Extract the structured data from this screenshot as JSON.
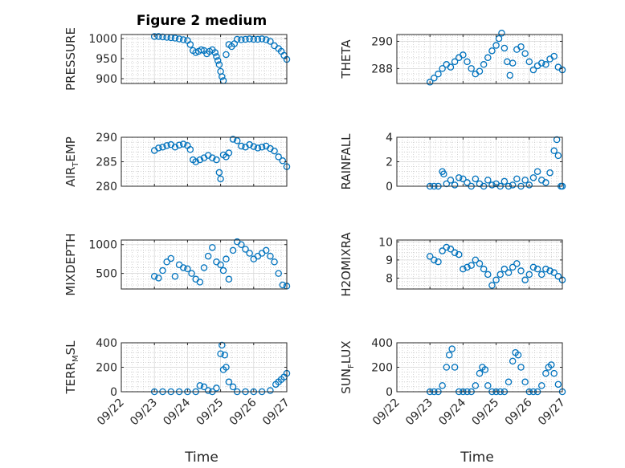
{
  "figure": {
    "title": "Figure 2 medium"
  },
  "chart_data": [
    {
      "type": "scatter",
      "ylabel": "PRESSURE",
      "ylim": [
        888,
        1010
      ],
      "yticks": [
        "900",
        "950",
        "1000"
      ],
      "ytick_values": [
        900,
        950,
        1000
      ],
      "color": "#0072BD",
      "x": [
        "09/23 00:00",
        "09/23 03:00",
        "09/23 06:00",
        "09/23 09:00",
        "09/23 12:00",
        "09/23 15:00",
        "09/23 18:00",
        "09/23 21:00",
        "09/24 00:00",
        "09/24 02:00",
        "09/24 04:00",
        "09/24 06:00",
        "09/24 08:00",
        "09/24 10:00",
        "09/24 12:00",
        "09/24 14:00",
        "09/24 16:00",
        "09/24 18:00",
        "09/24 20:00",
        "09/24 21:00",
        "09/24 22:00",
        "09/24 23:00",
        "09/25 00:00",
        "09/25 01:00",
        "09/25 02:00",
        "09/25 04:00",
        "09/25 06:00",
        "09/25 08:00",
        "09/25 10:00",
        "09/25 12:00",
        "09/25 15:00",
        "09/25 18:00",
        "09/25 21:00",
        "09/26 00:00",
        "09/26 03:00",
        "09/26 06:00",
        "09/26 09:00",
        "09/26 12:00",
        "09/26 15:00",
        "09/26 18:00",
        "09/26 20:00",
        "09/26 22:00",
        "09/27 00:00"
      ],
      "y": [
        1005,
        1005,
        1004,
        1003,
        1002,
        1001,
        999,
        997,
        995,
        985,
        970,
        965,
        968,
        972,
        970,
        962,
        968,
        972,
        965,
        955,
        945,
        935,
        918,
        905,
        895,
        960,
        985,
        980,
        987,
        998,
        997,
        998,
        999,
        998,
        998,
        999,
        997,
        993,
        982,
        975,
        968,
        958,
        948
      ]
    },
    {
      "type": "scatter",
      "ylabel": "THETA",
      "ylim": [
        286.9,
        290.5
      ],
      "yticks": [
        "288",
        "290"
      ],
      "ytick_values": [
        288,
        290
      ],
      "color": "#0072BD",
      "x": [
        "09/23 00:00",
        "09/23 03:00",
        "09/23 06:00",
        "09/23 09:00",
        "09/23 12:00",
        "09/23 15:00",
        "09/23 18:00",
        "09/23 21:00",
        "09/24 00:00",
        "09/24 03:00",
        "09/24 06:00",
        "09/24 09:00",
        "09/24 12:00",
        "09/24 15:00",
        "09/24 18:00",
        "09/24 21:00",
        "09/25 00:00",
        "09/25 02:00",
        "09/25 04:00",
        "09/25 06:00",
        "09/25 08:00",
        "09/25 10:00",
        "09/25 12:00",
        "09/25 15:00",
        "09/25 18:00",
        "09/25 21:00",
        "09/26 00:00",
        "09/26 03:00",
        "09/26 06:00",
        "09/26 09:00",
        "09/26 12:00",
        "09/26 15:00",
        "09/26 18:00",
        "09/26 21:00",
        "09/27 00:00"
      ],
      "y": [
        287.0,
        287.3,
        287.6,
        288.0,
        288.3,
        288.1,
        288.5,
        288.8,
        289.0,
        288.5,
        288.0,
        287.6,
        287.8,
        288.3,
        288.8,
        289.3,
        289.7,
        290.2,
        290.6,
        289.5,
        288.5,
        287.5,
        288.4,
        289.4,
        289.6,
        289.1,
        288.5,
        287.9,
        288.2,
        288.4,
        288.3,
        288.7,
        288.9,
        288.1,
        287.9
      ]
    },
    {
      "type": "scatter",
      "ylabel": "AIR_TEMP",
      "ylabel_main": "AIR",
      "ylabel_sub": "T",
      "ylabel_rest": "EMP",
      "ylim": [
        280,
        290
      ],
      "yticks": [
        "280",
        "285",
        "290"
      ],
      "ytick_values": [
        280,
        285,
        290
      ],
      "color": "#0072BD",
      "x": [
        "09/23 00:00",
        "09/23 03:00",
        "09/23 06:00",
        "09/23 09:00",
        "09/23 12:00",
        "09/23 15:00",
        "09/23 18:00",
        "09/23 21:00",
        "09/24 00:00",
        "09/24 02:00",
        "09/24 04:00",
        "09/24 06:00",
        "09/24 09:00",
        "09/24 12:00",
        "09/24 15:00",
        "09/24 18:00",
        "09/24 21:00",
        "09/24 23:00",
        "09/25 00:00",
        "09/25 02:00",
        "09/25 04:00",
        "09/25 06:00",
        "09/25 09:00",
        "09/25 12:00",
        "09/25 15:00",
        "09/25 18:00",
        "09/25 21:00",
        "09/26 00:00",
        "09/26 03:00",
        "09/26 06:00",
        "09/26 09:00",
        "09/26 12:00",
        "09/26 15:00",
        "09/26 18:00",
        "09/26 21:00",
        "09/27 00:00"
      ],
      "y": [
        287.3,
        287.8,
        288.0,
        288.3,
        288.5,
        288.0,
        288.4,
        288.6,
        288.3,
        287.5,
        285.4,
        285.0,
        285.4,
        285.8,
        286.3,
        285.8,
        285.4,
        282.8,
        281.5,
        286.4,
        286.0,
        286.8,
        289.6,
        289.3,
        288.2,
        288.0,
        288.5,
        288.1,
        287.8,
        288.0,
        288.2,
        287.7,
        287.2,
        286.0,
        285.2,
        284.0
      ]
    },
    {
      "type": "scatter",
      "ylabel": "RAINFALL",
      "ylim": [
        0,
        4
      ],
      "yticks": [
        "0",
        "2",
        "4"
      ],
      "ytick_values": [
        0,
        2,
        4
      ],
      "color": "#0072BD",
      "x": [
        "09/23 00:00",
        "09/23 03:00",
        "09/23 06:00",
        "09/23 09:00",
        "09/23 10:00",
        "09/23 12:00",
        "09/23 15:00",
        "09/23 18:00",
        "09/23 21:00",
        "09/24 00:00",
        "09/24 03:00",
        "09/24 06:00",
        "09/24 09:00",
        "09/24 12:00",
        "09/24 15:00",
        "09/24 18:00",
        "09/24 21:00",
        "09/25 00:00",
        "09/25 03:00",
        "09/25 06:00",
        "09/25 09:00",
        "09/25 12:00",
        "09/25 15:00",
        "09/25 18:00",
        "09/25 21:00",
        "09/26 00:00",
        "09/26 03:00",
        "09/26 06:00",
        "09/26 09:00",
        "09/26 12:00",
        "09/26 15:00",
        "09/26 18:00",
        "09/26 20:00",
        "09/26 21:00",
        "09/26 23:00",
        "09/27 00:00"
      ],
      "y": [
        0,
        0,
        0,
        1.2,
        1.0,
        0.2,
        0.5,
        0.1,
        0.7,
        0.6,
        0.3,
        0,
        0.6,
        0.2,
        0,
        0.5,
        0.1,
        0.2,
        0,
        0.4,
        0,
        0.1,
        0.6,
        0,
        0.5,
        0.1,
        0.7,
        1.2,
        0.5,
        0.3,
        1.1,
        2.9,
        3.8,
        2.5,
        0,
        0
      ]
    },
    {
      "type": "scatter",
      "ylabel": "MIXDEPTH",
      "ylim": [
        230,
        1080
      ],
      "yticks": [
        "500",
        "1000"
      ],
      "ytick_values": [
        500,
        1000
      ],
      "color": "#0072BD",
      "x": [
        "09/23 00:00",
        "09/23 03:00",
        "09/23 06:00",
        "09/23 09:00",
        "09/23 12:00",
        "09/23 15:00",
        "09/23 18:00",
        "09/23 21:00",
        "09/24 00:00",
        "09/24 03:00",
        "09/24 06:00",
        "09/24 09:00",
        "09/24 12:00",
        "09/24 15:00",
        "09/24 18:00",
        "09/24 21:00",
        "09/25 00:00",
        "09/25 02:00",
        "09/25 04:00",
        "09/25 06:00",
        "09/25 09:00",
        "09/25 12:00",
        "09/25 15:00",
        "09/25 18:00",
        "09/25 21:00",
        "09/26 00:00",
        "09/26 03:00",
        "09/26 06:00",
        "09/26 09:00",
        "09/26 12:00",
        "09/26 15:00",
        "09/26 18:00",
        "09/26 21:00",
        "09/27 00:00"
      ],
      "y": [
        450,
        420,
        550,
        700,
        760,
        450,
        650,
        600,
        580,
        500,
        400,
        350,
        600,
        800,
        950,
        700,
        650,
        550,
        750,
        400,
        900,
        1050,
        1000,
        920,
        850,
        750,
        800,
        850,
        900,
        800,
        700,
        500,
        300,
        280
      ]
    },
    {
      "type": "scatter",
      "ylabel": "H2OMIXRA",
      "ylim": [
        7.4,
        10.1
      ],
      "yticks": [
        "8",
        "9",
        "10"
      ],
      "ytick_values": [
        8,
        9,
        10
      ],
      "color": "#0072BD",
      "x": [
        "09/23 00:00",
        "09/23 03:00",
        "09/23 06:00",
        "09/23 09:00",
        "09/23 12:00",
        "09/23 15:00",
        "09/23 18:00",
        "09/23 21:00",
        "09/24 00:00",
        "09/24 03:00",
        "09/24 06:00",
        "09/24 09:00",
        "09/24 12:00",
        "09/24 15:00",
        "09/24 18:00",
        "09/24 21:00",
        "09/25 00:00",
        "09/25 03:00",
        "09/25 06:00",
        "09/25 09:00",
        "09/25 12:00",
        "09/25 15:00",
        "09/25 18:00",
        "09/25 21:00",
        "09/26 00:00",
        "09/26 03:00",
        "09/26 06:00",
        "09/26 09:00",
        "09/26 12:00",
        "09/26 15:00",
        "09/26 18:00",
        "09/26 21:00",
        "09/27 00:00"
      ],
      "y": [
        9.2,
        9.0,
        8.9,
        9.5,
        9.7,
        9.6,
        9.4,
        9.3,
        8.5,
        8.6,
        8.7,
        9.0,
        8.8,
        8.5,
        8.2,
        7.6,
        7.9,
        8.2,
        8.5,
        8.3,
        8.6,
        8.8,
        8.4,
        7.9,
        8.2,
        8.6,
        8.5,
        8.2,
        8.5,
        8.4,
        8.3,
        8.1,
        7.9
      ]
    },
    {
      "type": "scatter",
      "ylabel": "TERR_MSL",
      "ylabel_main": "TERR",
      "ylabel_sub": "M",
      "ylabel_rest": "SL",
      "ylim": [
        0,
        400
      ],
      "yticks": [
        "0",
        "200",
        "400"
      ],
      "ytick_values": [
        0,
        200,
        400
      ],
      "color": "#0072BD",
      "x": [
        "09/23 00:00",
        "09/23 06:00",
        "09/23 12:00",
        "09/23 18:00",
        "09/24 00:00",
        "09/24 06:00",
        "09/24 09:00",
        "09/24 12:00",
        "09/24 15:00",
        "09/24 18:00",
        "09/24 21:00",
        "09/25 00:00",
        "09/25 01:00",
        "09/25 02:00",
        "09/25 03:00",
        "09/25 04:00",
        "09/25 06:00",
        "09/25 09:00",
        "09/25 12:00",
        "09/25 18:00",
        "09/26 00:00",
        "09/26 06:00",
        "09/26 12:00",
        "09/26 16:00",
        "09/26 18:00",
        "09/26 20:00",
        "09/26 22:00",
        "09/27 00:00"
      ],
      "y": [
        0,
        0,
        0,
        0,
        0,
        0,
        50,
        40,
        10,
        0,
        30,
        310,
        380,
        180,
        300,
        200,
        80,
        40,
        0,
        0,
        0,
        0,
        10,
        60,
        80,
        100,
        120,
        150
      ]
    },
    {
      "type": "scatter",
      "ylabel": "SUN_FLUX",
      "ylabel_main": "SUN",
      "ylabel_sub": "F",
      "ylabel_rest": "LUX",
      "ylim": [
        0,
        400
      ],
      "yticks": [
        "0",
        "200",
        "400"
      ],
      "ytick_values": [
        0,
        200,
        400
      ],
      "color": "#0072BD",
      "x": [
        "09/23 00:00",
        "09/23 03:00",
        "09/23 06:00",
        "09/23 09:00",
        "09/23 12:00",
        "09/23 14:00",
        "09/23 16:00",
        "09/23 18:00",
        "09/23 21:00",
        "09/24 00:00",
        "09/24 03:00",
        "09/24 06:00",
        "09/24 09:00",
        "09/24 12:00",
        "09/24 14:00",
        "09/24 16:00",
        "09/24 18:00",
        "09/24 21:00",
        "09/25 00:00",
        "09/25 03:00",
        "09/25 06:00",
        "09/25 09:00",
        "09/25 12:00",
        "09/25 14:00",
        "09/25 16:00",
        "09/25 18:00",
        "09/25 21:00",
        "09/26 00:00",
        "09/26 03:00",
        "09/26 06:00",
        "09/26 09:00",
        "09/26 12:00",
        "09/26 14:00",
        "09/26 16:00",
        "09/26 18:00",
        "09/26 21:00",
        "09/27 00:00"
      ],
      "y": [
        0,
        0,
        0,
        50,
        200,
        300,
        350,
        200,
        0,
        0,
        0,
        0,
        50,
        150,
        200,
        180,
        50,
        0,
        0,
        0,
        0,
        80,
        250,
        320,
        300,
        200,
        80,
        0,
        0,
        0,
        50,
        150,
        200,
        220,
        150,
        60,
        0
      ]
    }
  ],
  "x_axis": {
    "label": "Time",
    "ticks": [
      "09/22",
      "09/23",
      "09/24",
      "09/25",
      "09/26",
      "09/27"
    ],
    "tick_values": [
      "09/22 00:00",
      "09/23 00:00",
      "09/24 00:00",
      "09/25 00:00",
      "09/26 00:00",
      "09/27 00:00"
    ]
  }
}
